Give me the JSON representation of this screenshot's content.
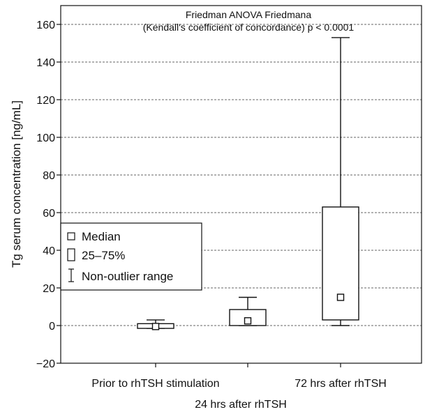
{
  "chart_data": {
    "type": "box",
    "annotation": [
      "Friedman ANOVA Friedmana",
      "(Kendall's coefficient of concordance) p < 0.0001"
    ],
    "xlabel": "",
    "ylabel": "Tg serum concentration [ng/mL]",
    "ylim": [
      -20,
      170
    ],
    "yticks": [
      -20,
      0,
      20,
      40,
      60,
      80,
      100,
      120,
      140,
      160
    ],
    "grid": "horizontal dashed at major ticks",
    "categories": [
      "Prior to rhTSH stimulation",
      "24 hrs after rhTSH",
      "72 hrs after rhTSH"
    ],
    "boxes": [
      {
        "category": "Prior to rhTSH stimulation",
        "median": -0.5,
        "q1": -1.5,
        "q3": 1.0,
        "whisker_low": -1.5,
        "whisker_high": 3.0
      },
      {
        "category": "24 hrs after rhTSH",
        "median": 2.5,
        "q1": 0.0,
        "q3": 8.5,
        "whisker_low": 0.0,
        "whisker_high": 15.0
      },
      {
        "category": "72 hrs after rhTSH",
        "median": 15.0,
        "q1": 3.0,
        "q3": 63.0,
        "whisker_low": 0.0,
        "whisker_high": 153.0
      }
    ],
    "legend": {
      "position": "left-middle",
      "items": [
        {
          "symbol": "square-small",
          "label": "Median"
        },
        {
          "symbol": "rectangle",
          "label": "25–75%"
        },
        {
          "symbol": "whisker",
          "label": "Non-outlier range"
        }
      ]
    }
  }
}
